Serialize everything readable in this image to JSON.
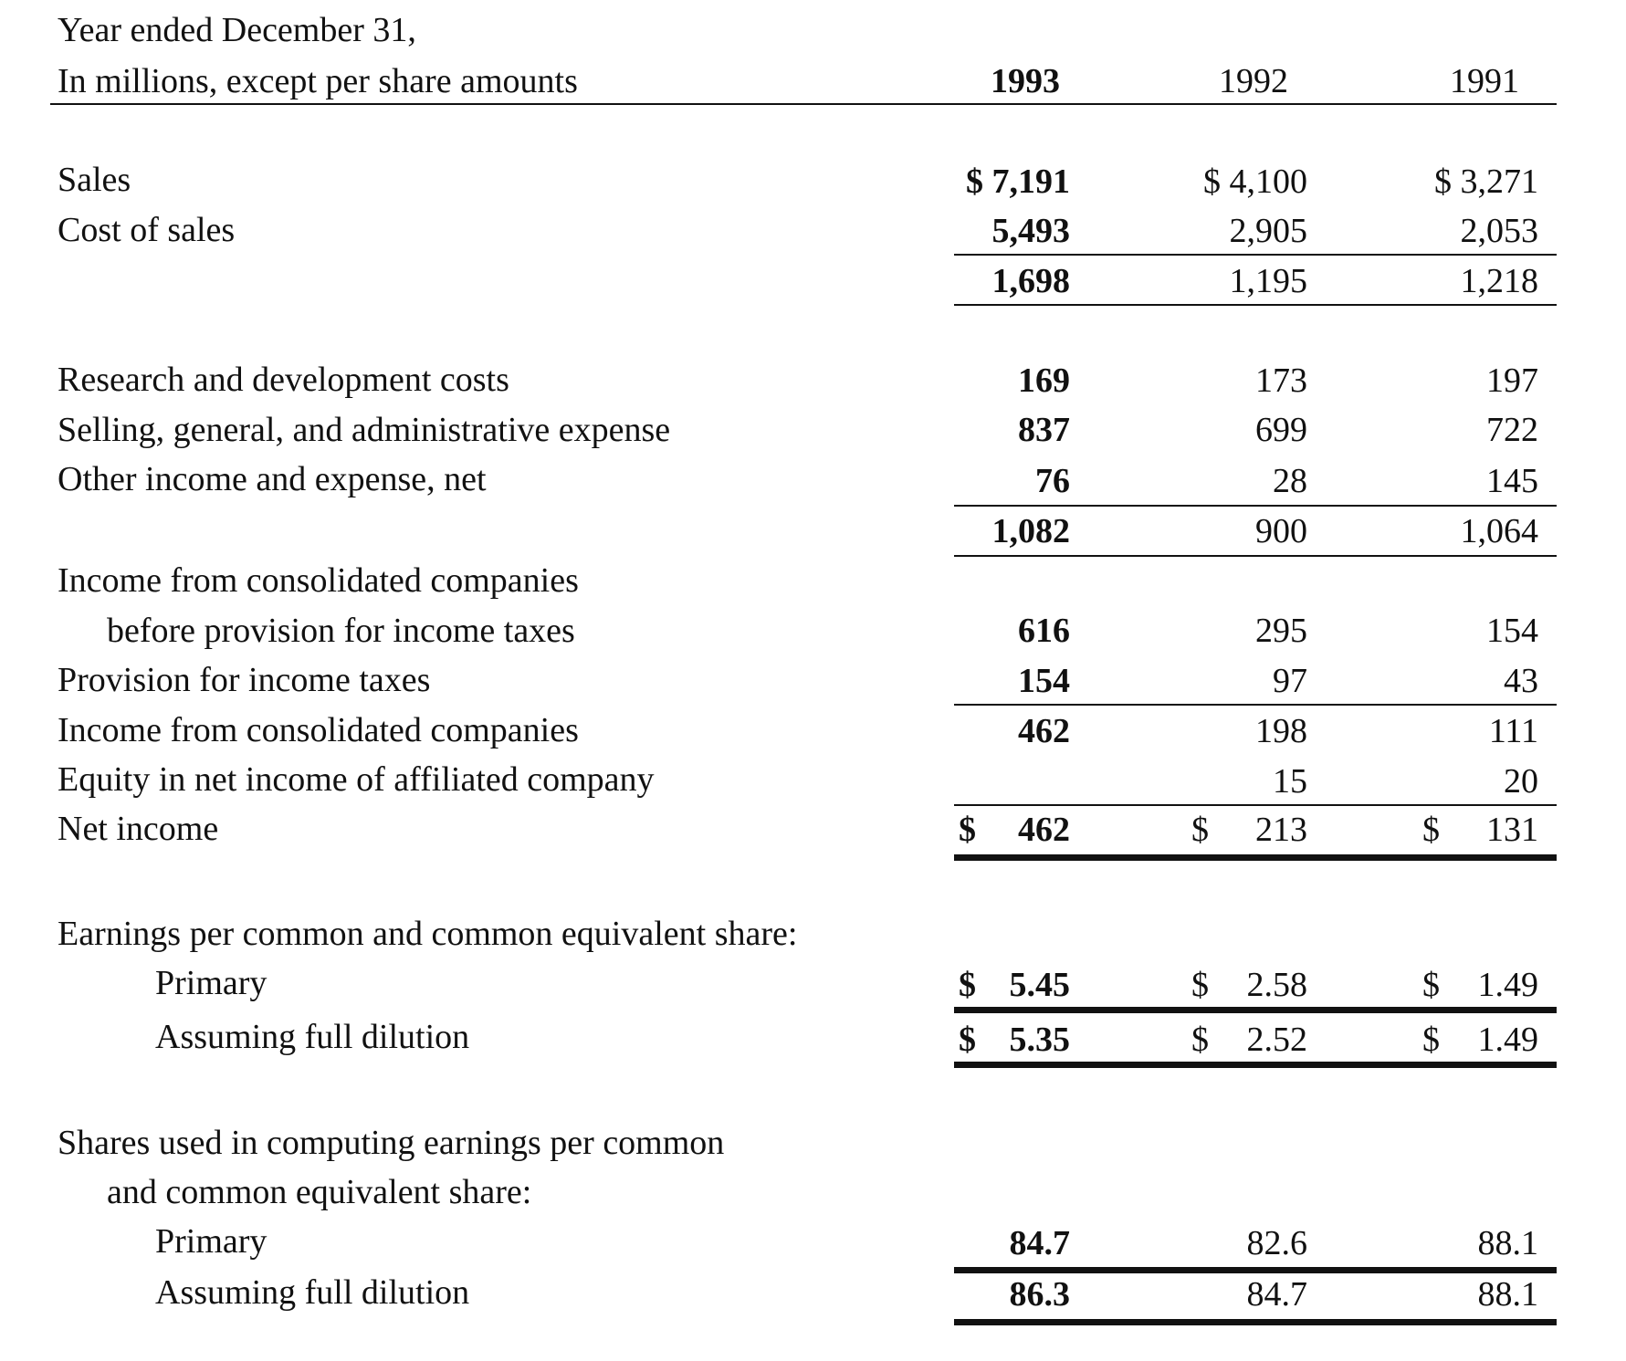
{
  "header": {
    "line1": "Year ended December 31,",
    "line2": "In millions, except per share amounts",
    "years": [
      "1993",
      "1992",
      "1991"
    ]
  },
  "rows": [
    {
      "label": "Sales",
      "values": [
        "$ 7,191",
        "$ 4,100",
        "$ 3,271"
      ]
    },
    {
      "label": "Cost of sales",
      "values": [
        "5,493",
        "2,905",
        "2,053"
      ]
    },
    {
      "label": "",
      "values": [
        "1,698",
        "1,195",
        "1,218"
      ]
    },
    {
      "label": "Research and development costs",
      "values": [
        "169",
        "173",
        "197"
      ]
    },
    {
      "label": "Selling, general, and administrative expense",
      "values": [
        "837",
        "699",
        "722"
      ]
    },
    {
      "label": "Other income and expense, net",
      "values": [
        "76",
        "28",
        "145"
      ]
    },
    {
      "label": "",
      "values": [
        "1,082",
        "900",
        "1,064"
      ]
    },
    {
      "label": "Income from consolidated companies",
      "values": [
        "",
        "",
        ""
      ]
    },
    {
      "label": "before provision for income taxes",
      "values": [
        "616",
        "295",
        "154"
      ]
    },
    {
      "label": "Provision for income taxes",
      "values": [
        "154",
        "97",
        "43"
      ]
    },
    {
      "label": "Income from consolidated companies",
      "values": [
        "462",
        "198",
        "111"
      ]
    },
    {
      "label": "Equity in net income of affiliated company",
      "values": [
        "",
        "15",
        "20"
      ]
    },
    {
      "label": "Net income",
      "values": [
        "462",
        "213",
        "131"
      ]
    },
    {
      "label": "Earnings per common and common equivalent share:",
      "values": [
        "",
        "",
        ""
      ]
    },
    {
      "label": "Primary",
      "values": [
        "5.45",
        "2.58",
        "1.49"
      ]
    },
    {
      "label": "Assuming full dilution",
      "values": [
        "5.35",
        "2.52",
        "1.49"
      ]
    },
    {
      "label": "Shares used in computing earnings per common",
      "values": [
        "",
        "",
        ""
      ]
    },
    {
      "label": "and common equivalent share:",
      "values": [
        "",
        "",
        ""
      ]
    },
    {
      "label": "Primary",
      "values": [
        "84.7",
        "82.6",
        "88.1"
      ]
    },
    {
      "label": "Assuming full dilution",
      "values": [
        "86.3",
        "84.7",
        "88.1"
      ]
    }
  ],
  "currency_symbol": "$"
}
